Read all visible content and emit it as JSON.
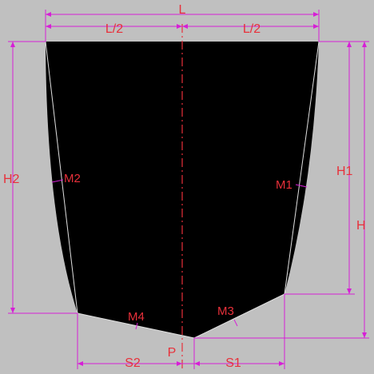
{
  "colors": {
    "background": "#c0c0c0",
    "shape": "#000000",
    "dimension_lines": "#d61fd6",
    "labels": "#e8303a",
    "chords": "#e0e0e0"
  },
  "labels": {
    "L": "L",
    "L_half_left": "L/2",
    "L_half_right": "L/2",
    "H": "H",
    "H1": "H1",
    "H2": "H2",
    "S1": "S1",
    "S2": "S2",
    "P": "P",
    "M1": "M1",
    "M2": "M2",
    "M3": "M3",
    "M4": "M4"
  }
}
